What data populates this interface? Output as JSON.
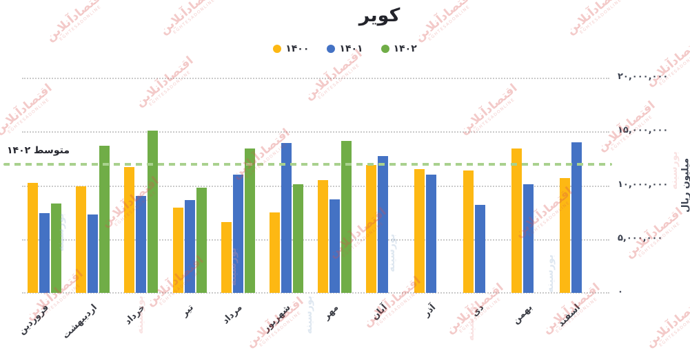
{
  "title": "کویر",
  "legend": [
    {
      "label": "۱۴۰۰",
      "color": "#FDB813"
    },
    {
      "label": "۱۴۰۱",
      "color": "#4472C4"
    },
    {
      "label": "۱۴۰۲",
      "color": "#70AD47"
    }
  ],
  "average_line": {
    "label": "متوسط ۱۴۰۲",
    "value": 12050000,
    "color": "#A9D18E"
  },
  "y_axis": {
    "title": "میلیون ریال",
    "ticks": [
      "۲۰,۰۰۰,۰۰۰",
      "۱۵,۰۰۰,۰۰۰",
      "۱۰,۰۰۰,۰۰۰",
      "۵,۰۰۰,۰۰۰",
      "۰"
    ],
    "min": 0,
    "max": 20000000
  },
  "watermark": {
    "text": "اقتصادآنلاین",
    "subtext": "EGHTESADONLINE",
    "color_red": "rgba(216,80,76,0.30)",
    "side_text": "بورسینه",
    "color_light_blue": "rgba(145,175,205,0.30)",
    "color_light_pink": "rgba(235,160,160,0.30)"
  },
  "chart_data": {
    "type": "bar",
    "title": "کویر",
    "xlabel": "",
    "ylabel": "میلیون ریال",
    "ylim": [
      0,
      20000000
    ],
    "grid": "dotted horizontal, ticks every 5,000,000",
    "legend_position": "top center",
    "average_line_value": 12050000,
    "average_line_label": "متوسط ۱۴۰۲",
    "categories": [
      "فروردین",
      "اردیبهشت",
      "خرداد",
      "تیر",
      "مرداد",
      "شهریور",
      "مهر",
      "آبان",
      "آذر",
      "دی",
      "بهمن",
      "اسفند"
    ],
    "series": [
      {
        "name": "۱۴۰۰",
        "color": "#FDB813",
        "values": [
          10200000,
          9900000,
          11700000,
          7900000,
          6600000,
          7500000,
          10500000,
          11900000,
          11500000,
          11400000,
          13400000,
          10700000
        ]
      },
      {
        "name": "۱۴۰۱",
        "color": "#4472C4",
        "values": [
          7400000,
          7300000,
          9000000,
          8600000,
          11000000,
          13900000,
          8700000,
          12700000,
          11000000,
          8200000,
          10100000,
          14000000
        ]
      },
      {
        "name": "۱۴۰۲",
        "color": "#70AD47",
        "values": [
          8300000,
          13700000,
          15100000,
          9800000,
          13400000,
          10100000,
          14100000,
          null,
          null,
          null,
          null,
          null
        ]
      }
    ]
  }
}
